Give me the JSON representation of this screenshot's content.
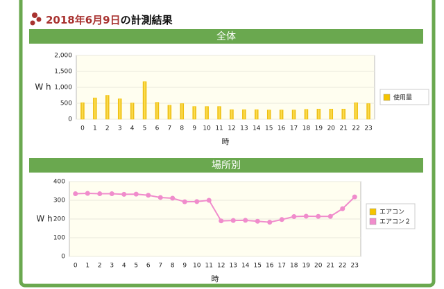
{
  "header": {
    "date": "2018年6月9日",
    "suffix": "の計測結果"
  },
  "chart_data": [
    {
      "type": "bar",
      "title": "全体",
      "ylabel": "W h",
      "xlabel": "時",
      "categories": [
        "0",
        "1",
        "2",
        "3",
        "4",
        "5",
        "6",
        "7",
        "8",
        "9",
        "10",
        "11",
        "12",
        "13",
        "14",
        "15",
        "16",
        "17",
        "18",
        "19",
        "20",
        "21",
        "22",
        "23"
      ],
      "series": [
        {
          "name": "使用量",
          "color": "#f5c400",
          "values": [
            520,
            670,
            750,
            640,
            510,
            1180,
            530,
            440,
            490,
            400,
            400,
            400,
            300,
            300,
            300,
            290,
            290,
            290,
            310,
            320,
            320,
            320,
            520,
            490
          ]
        }
      ],
      "ylim": [
        0,
        2000
      ],
      "yticks": [
        0,
        500,
        {
          "value": 1000,
          "label": "1,000"
        },
        {
          "value": 1500,
          "label": "1,500"
        },
        {
          "value": 2000,
          "label": "2,000"
        }
      ],
      "grid": true
    },
    {
      "type": "line",
      "title": "場所別",
      "ylabel": "W h",
      "xlabel": "時",
      "categories": [
        "0",
        "1",
        "2",
        "3",
        "4",
        "5",
        "6",
        "7",
        "8",
        "9",
        "10",
        "11",
        "12",
        "13",
        "14",
        "15",
        "16",
        "17",
        "18",
        "19",
        "20",
        "21",
        "22",
        "23"
      ],
      "series": [
        {
          "name": "エアコン",
          "color": "#f5c400",
          "values": [
            null,
            null,
            null,
            null,
            null,
            null,
            null,
            null,
            null,
            null,
            null,
            null,
            null,
            null,
            null,
            null,
            null,
            null,
            null,
            null,
            null,
            null,
            null,
            null
          ]
        },
        {
          "name": "エアコン２",
          "color": "#f08ccc",
          "values": [
            335,
            337,
            335,
            335,
            332,
            333,
            327,
            315,
            311,
            292,
            293,
            300,
            190,
            192,
            193,
            188,
            183,
            197,
            213,
            215,
            214,
            214,
            255,
            318
          ]
        }
      ],
      "ylim": [
        0,
        400
      ],
      "yticks": [
        0,
        100,
        200,
        300,
        400
      ],
      "grid": true
    }
  ]
}
